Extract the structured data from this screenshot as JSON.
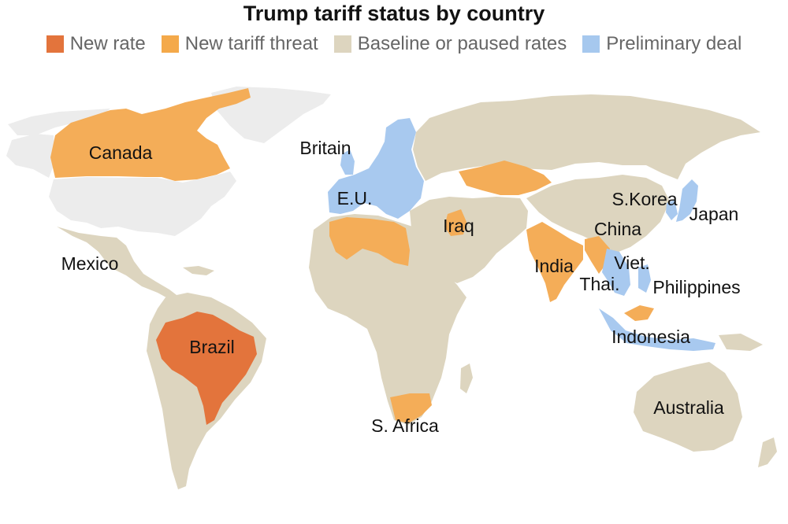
{
  "title": "Trump tariff status by country",
  "legend": [
    {
      "key": "new_rate",
      "label": "New rate",
      "color": "#e3743c"
    },
    {
      "key": "threat",
      "label": "New tariff threat",
      "color": "#f4a94a"
    },
    {
      "key": "baseline",
      "label": "Baseline or paused rates",
      "color": "#ddd5bf"
    },
    {
      "key": "deal",
      "label": "Preliminary deal",
      "color": "#a6c8ee"
    }
  ],
  "colors": {
    "new_rate": "#e3743c",
    "threat": "#f4ad58",
    "baseline": "#ddd5bf",
    "deal": "#a8c9ef",
    "nodata": "#ececec",
    "background": "#ffffff"
  },
  "labels": {
    "canada": "Canada",
    "britain": "Britain",
    "eu": "E.U.",
    "mexico": "Mexico",
    "brazil": "Brazil",
    "iraq": "Iraq",
    "india": "India",
    "china": "China",
    "skorea": "S.Korea",
    "japan": "Japan",
    "viet": "Viet.",
    "thai": "Thai.",
    "philippines": "Philippines",
    "indonesia": "Indonesia",
    "safrica": "S. Africa",
    "australia": "Australia"
  }
}
